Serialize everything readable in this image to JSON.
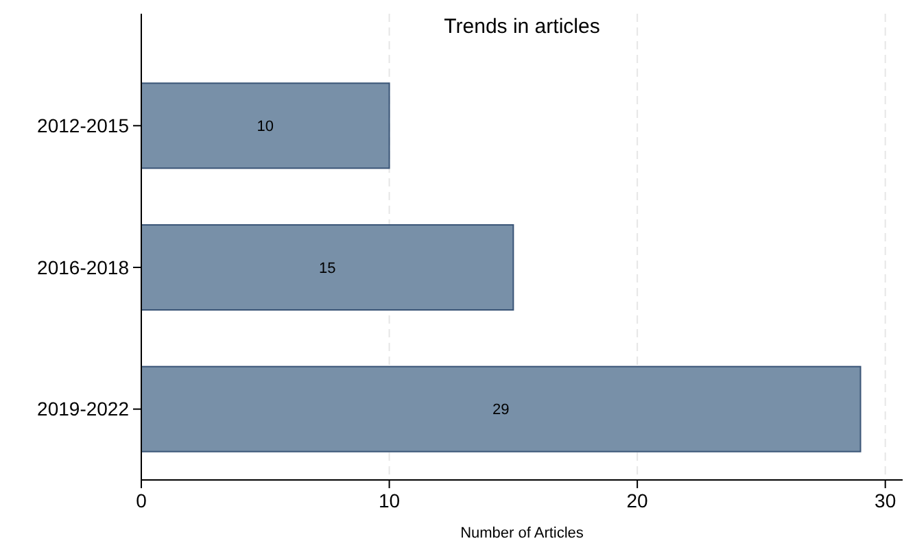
{
  "chart_data": {
    "type": "bar",
    "orientation": "horizontal",
    "title": "Trends in articles",
    "xlabel": "Number of Articles",
    "categories": [
      "2012-2015",
      "2016-2018",
      "2019-2022"
    ],
    "values": [
      10,
      15,
      29
    ],
    "color": "#7890a8",
    "data_labels": true,
    "xlim": [
      0,
      30.7
    ],
    "xticks": [
      0,
      10,
      20,
      30
    ],
    "grid": "x"
  }
}
